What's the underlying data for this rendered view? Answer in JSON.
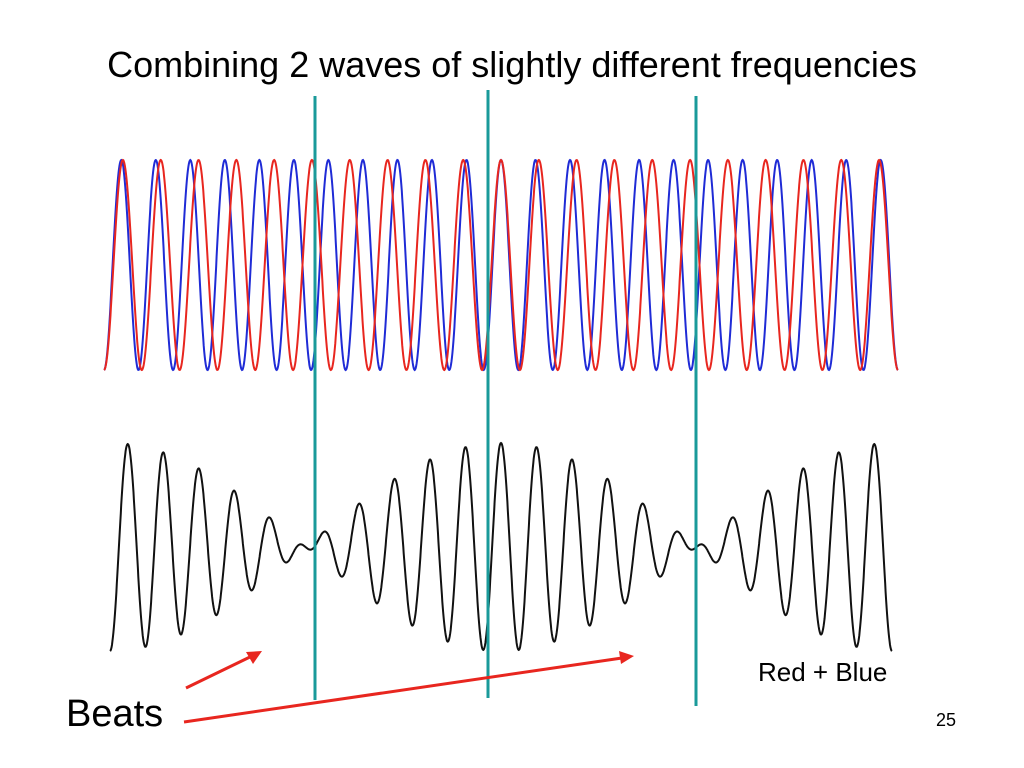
{
  "slide": {
    "title": "Combining 2 waves of slightly different frequencies",
    "sum_label": "Red + Blue",
    "beats_label": "Beats",
    "page_number": "25"
  },
  "colors": {
    "red_wave": "#e8261f",
    "blue_wave": "#1f2bd6",
    "sum_wave": "#111111",
    "markers": "#1a9a9a",
    "arrows": "#e8261f"
  },
  "waves": {
    "blue_cycles": 23,
    "red_cycles": 21,
    "sum_wave": "Red + Blue"
  }
}
